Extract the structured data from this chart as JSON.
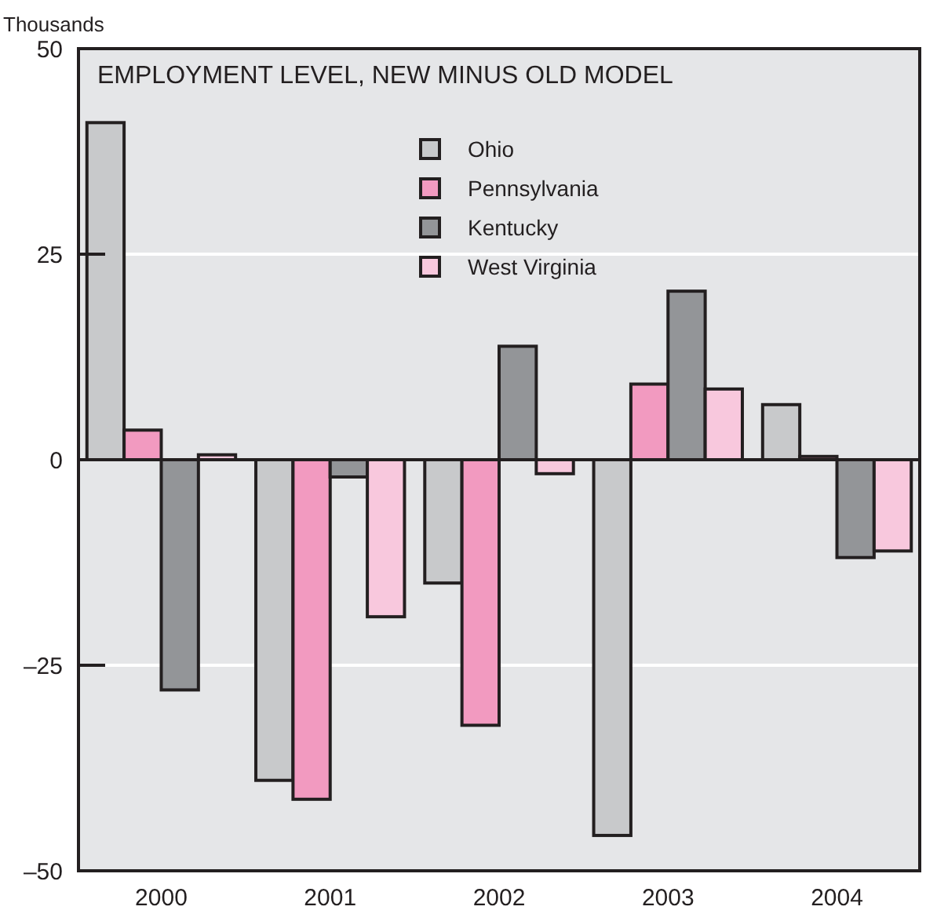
{
  "chart_data": {
    "type": "bar",
    "title": "EMPLOYMENT LEVEL, NEW MINUS OLD MODEL",
    "ylabel": "Thousands",
    "categories": [
      "2000",
      "2001",
      "2002",
      "2003",
      "2004"
    ],
    "series": [
      {
        "name": "Ohio",
        "color": "#c8c9cb",
        "values": [
          41,
          -39,
          -15,
          -45.7,
          6.7
        ]
      },
      {
        "name": "Pennsylvania",
        "color": "#f29ac0",
        "values": [
          3.6,
          -41.3,
          -32.3,
          9.2,
          0.4
        ]
      },
      {
        "name": "Kentucky",
        "color": "#939598",
        "values": [
          -28,
          -2.1,
          13.8,
          20.5,
          -11.9
        ]
      },
      {
        "name": "West Virginia",
        "color": "#f8c8dd",
        "values": [
          0.6,
          -19.1,
          -1.7,
          8.6,
          -11.1
        ]
      }
    ],
    "ylim": [
      -50,
      50
    ],
    "yticks": [
      {
        "value": -50,
        "label": "–50"
      },
      {
        "value": -25,
        "label": "–25"
      },
      0,
      25,
      50
    ],
    "grid": "y",
    "legend": "top"
  }
}
